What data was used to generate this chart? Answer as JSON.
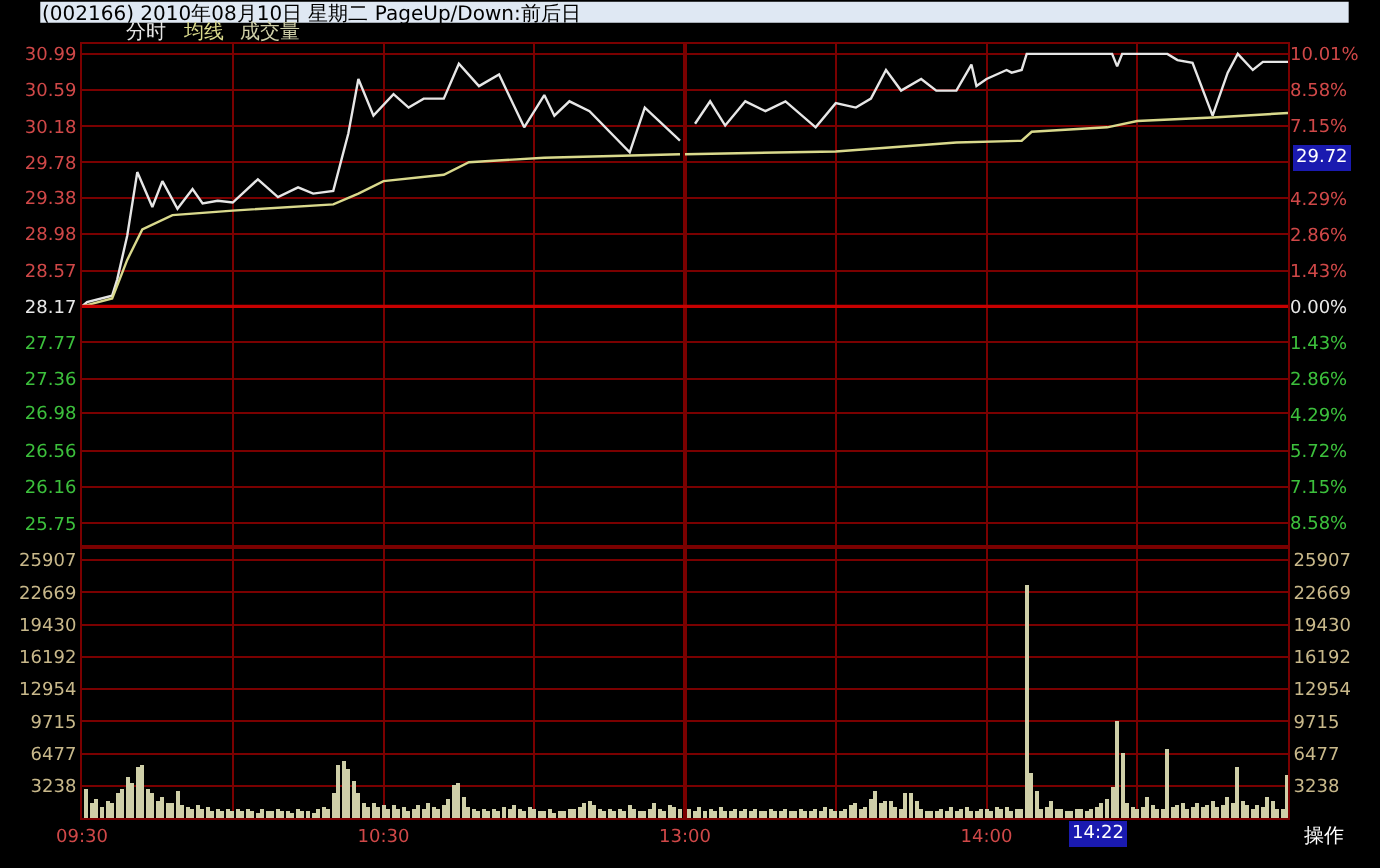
{
  "chart_data": [
    {
      "type": "line",
      "title": "(002166) 2010年08月10日 星期二 PageUp/Down:前后日",
      "grid": true,
      "tick_labels": "y",
      "xlim": [
        "2010-08-10T09:30",
        "2010-08-10T11:30"
      ],
      "xticks": [
        {
          "value": "2010-08-10T09:30",
          "label": null
        },
        {
          "value": "2010-08-10T10:00",
          "label": null
        },
        {
          "value": "2010-08-10T10:30",
          "label": null
        },
        {
          "value": "2010-08-10T11:00",
          "label": null
        }
      ],
      "ylim": [
        25.49,
        31.1
      ],
      "yticks": [
        30.99,
        30.59,
        30.18,
        29.78,
        29.38,
        28.98,
        28.57,
        28.17,
        27.77,
        27.36,
        26.98,
        26.56,
        26.16,
        25.75
      ],
      "ref_lines": [
        {
          "axis": "y",
          "value": 28.17,
          "color": "#c80000"
        }
      ],
      "series": [
        {
          "name": "分时",
          "color": "#e6e6e6",
          "x": [
            "2010-08-10T09:30",
            "2010-08-10T09:31",
            "2010-08-10T09:36",
            "2010-08-10T09:37",
            "2010-08-10T09:39",
            "2010-08-10T09:41",
            "2010-08-10T09:44",
            "2010-08-10T09:46",
            "2010-08-10T09:49",
            "2010-08-10T09:52",
            "2010-08-10T09:54",
            "2010-08-10T09:57",
            "2010-08-10T10:00",
            "2010-08-10T10:05",
            "2010-08-10T10:09",
            "2010-08-10T10:13",
            "2010-08-10T10:16",
            "2010-08-10T10:20",
            "2010-08-10T10:23",
            "2010-08-10T10:25",
            "2010-08-10T10:28",
            "2010-08-10T10:32",
            "2010-08-10T10:35",
            "2010-08-10T10:38",
            "2010-08-10T10:42",
            "2010-08-10T10:45",
            "2010-08-10T10:49",
            "2010-08-10T10:53",
            "2010-08-10T10:58",
            "2010-08-10T11:02",
            "2010-08-10T11:04",
            "2010-08-10T11:07",
            "2010-08-10T11:11",
            "2010-08-10T11:19",
            "2010-08-10T11:22",
            "2010-08-10T11:29"
          ],
          "values": [
            28.17,
            28.22,
            28.29,
            28.47,
            28.96,
            29.67,
            29.28,
            29.57,
            29.26,
            29.48,
            29.32,
            29.35,
            29.33,
            29.59,
            29.39,
            29.5,
            29.43,
            29.46,
            30.1,
            30.71,
            30.3,
            30.54,
            30.39,
            30.49,
            30.49,
            30.88,
            30.63,
            30.76,
            30.17,
            30.53,
            30.3,
            30.46,
            30.35,
            29.89,
            30.39,
            30.02
          ]
        },
        {
          "name": "均线",
          "color": "#d9d98c",
          "x": [
            "2010-08-10T09:30",
            "2010-08-10T09:36",
            "2010-08-10T09:39",
            "2010-08-10T09:42",
            "2010-08-10T09:48",
            "2010-08-10T10:00",
            "2010-08-10T10:20",
            "2010-08-10T10:25",
            "2010-08-10T10:30",
            "2010-08-10T10:42",
            "2010-08-10T10:47",
            "2010-08-10T11:02",
            "2010-08-10T11:29"
          ],
          "values": [
            28.17,
            28.26,
            28.69,
            29.03,
            29.19,
            29.24,
            29.31,
            29.43,
            29.57,
            29.64,
            29.78,
            29.83,
            29.87
          ]
        }
      ]
    },
    {
      "type": "line",
      "grid": true,
      "tick_labels": false,
      "xlim": [
        "2010-08-10T13:00",
        "2010-08-10T15:00"
      ],
      "xticks": [
        {
          "value": "2010-08-10T13:00",
          "label": null
        },
        {
          "value": "2010-08-10T13:30",
          "label": null
        },
        {
          "value": "2010-08-10T14:00",
          "label": null
        },
        {
          "value": "2010-08-10T14:30",
          "label": null
        }
      ],
      "ylim": [
        25.49,
        31.1
      ],
      "yticks": [
        30.99,
        30.59,
        30.18,
        29.78,
        29.38,
        28.98,
        28.57,
        28.17,
        27.77,
        27.36,
        26.98,
        26.56,
        26.16,
        25.75
      ],
      "y2lim": [
        -9.51,
        10.4
      ],
      "y2ticks": [
        {
          "value": 10.01,
          "label": "10.01%"
        },
        {
          "value": 8.58,
          "label": "8.58%"
        },
        {
          "value": 7.15,
          "label": "7.15%"
        },
        {
          "value": 4.29,
          "label": "4.29%"
        },
        {
          "value": 2.86,
          "label": "2.86%"
        },
        {
          "value": 1.43,
          "label": "1.43%"
        },
        {
          "value": 0,
          "label": "0.00%"
        },
        {
          "value": -1.43,
          "label": "1.43%"
        },
        {
          "value": -2.86,
          "label": "2.86%"
        },
        {
          "value": -4.29,
          "label": "4.29%"
        },
        {
          "value": -5.72,
          "label": "5.72%"
        },
        {
          "value": -7.15,
          "label": "7.15%"
        },
        {
          "value": -8.58,
          "label": "8.58%"
        }
      ],
      "ref_lines": [
        {
          "axis": "y",
          "value": 28.17,
          "color": "#c80000"
        }
      ],
      "annotations": [
        "29.72"
      ],
      "series": [
        {
          "color": "#e6e6e6",
          "x": [
            "2010-08-10T13:02",
            "2010-08-10T13:05",
            "2010-08-10T13:08",
            "2010-08-10T13:12",
            "2010-08-10T13:16",
            "2010-08-10T13:20",
            "2010-08-10T13:26",
            "2010-08-10T13:30",
            "2010-08-10T13:34",
            "2010-08-10T13:37",
            "2010-08-10T13:40",
            "2010-08-10T13:43",
            "2010-08-10T13:47",
            "2010-08-10T13:50",
            "2010-08-10T13:54",
            "2010-08-10T13:57",
            "2010-08-10T13:58",
            "2010-08-10T14:00",
            "2010-08-10T14:04",
            "2010-08-10T14:05",
            "2010-08-10T14:07",
            "2010-08-10T14:08",
            "2010-08-10T14:25",
            "2010-08-10T14:26",
            "2010-08-10T14:27",
            "2010-08-10T14:36",
            "2010-08-10T14:38",
            "2010-08-10T14:41",
            "2010-08-10T14:45",
            "2010-08-10T14:48",
            "2010-08-10T14:50",
            "2010-08-10T14:53",
            "2010-08-10T14:55",
            "2010-08-10T15:00"
          ],
          "values": [
            30.21,
            30.46,
            30.19,
            30.46,
            30.35,
            30.46,
            30.17,
            30.44,
            30.39,
            30.49,
            30.81,
            30.58,
            30.71,
            30.58,
            30.58,
            30.87,
            30.63,
            30.71,
            30.81,
            30.78,
            30.81,
            30.99,
            30.99,
            30.85,
            30.99,
            30.99,
            30.92,
            30.89,
            30.3,
            30.78,
            30.99,
            30.81,
            30.9,
            30.9
          ]
        },
        {
          "color": "#d9d98c",
          "x": [
            "2010-08-10T13:00",
            "2010-08-10T13:30",
            "2010-08-10T13:54",
            "2010-08-10T14:07",
            "2010-08-10T14:09",
            "2010-08-10T14:24",
            "2010-08-10T14:30",
            "2010-08-10T14:45",
            "2010-08-10T15:00"
          ],
          "values": [
            29.87,
            29.9,
            30.0,
            30.02,
            30.12,
            30.17,
            30.24,
            30.28,
            30.33
          ]
        }
      ]
    },
    {
      "type": "bar",
      "grid": true,
      "xlim": [
        "2010-08-10T09:30",
        "2010-08-10T11:30"
      ],
      "xticks": [
        {
          "value": "2010-08-10T09:30",
          "label": "09:30"
        },
        {
          "value": "2010-08-10T10:00",
          "label": null
        },
        {
          "value": "2010-08-10T10:30",
          "label": "10:30"
        },
        {
          "value": "2010-08-10T11:00",
          "label": null
        }
      ],
      "ylim": [
        0,
        27260
      ],
      "yticks": [
        3238,
        6477,
        9715,
        12954,
        16192,
        19430,
        22669,
        25907
      ],
      "series": [
        {
          "name": "成交量",
          "color": "#cfcfa8",
          "x": [
            "2010-08-10T09:31",
            "2010-08-10T09:32",
            "2010-08-10T09:33",
            "2010-08-10T09:34",
            "2010-08-10T09:35",
            "2010-08-10T09:36",
            "2010-08-10T09:37",
            "2010-08-10T09:38",
            "2010-08-10T09:39",
            "2010-08-10T09:40",
            "2010-08-10T09:41",
            "2010-08-10T09:42",
            "2010-08-10T09:43",
            "2010-08-10T09:44",
            "2010-08-10T09:45",
            "2010-08-10T09:46",
            "2010-08-10T09:47",
            "2010-08-10T09:48",
            "2010-08-10T09:49",
            "2010-08-10T09:50",
            "2010-08-10T09:51",
            "2010-08-10T09:52",
            "2010-08-10T09:53",
            "2010-08-10T09:54",
            "2010-08-10T09:55",
            "2010-08-10T09:56",
            "2010-08-10T09:57",
            "2010-08-10T09:58",
            "2010-08-10T09:59",
            "2010-08-10T10:00",
            "2010-08-10T10:01",
            "2010-08-10T10:02",
            "2010-08-10T10:03",
            "2010-08-10T10:04",
            "2010-08-10T10:05",
            "2010-08-10T10:06",
            "2010-08-10T10:07",
            "2010-08-10T10:08",
            "2010-08-10T10:09",
            "2010-08-10T10:10",
            "2010-08-10T10:11",
            "2010-08-10T10:12",
            "2010-08-10T10:13",
            "2010-08-10T10:14",
            "2010-08-10T10:15",
            "2010-08-10T10:16",
            "2010-08-10T10:17",
            "2010-08-10T10:18",
            "2010-08-10T10:19",
            "2010-08-10T10:20",
            "2010-08-10T10:21",
            "2010-08-10T10:22",
            "2010-08-10T10:23",
            "2010-08-10T10:24",
            "2010-08-10T10:25",
            "2010-08-10T10:26",
            "2010-08-10T10:27",
            "2010-08-10T10:28",
            "2010-08-10T10:29",
            "2010-08-10T10:30",
            "2010-08-10T10:31",
            "2010-08-10T10:32",
            "2010-08-10T10:33",
            "2010-08-10T10:34",
            "2010-08-10T10:35",
            "2010-08-10T10:36",
            "2010-08-10T10:37",
            "2010-08-10T10:38",
            "2010-08-10T10:39",
            "2010-08-10T10:40",
            "2010-08-10T10:41",
            "2010-08-10T10:42",
            "2010-08-10T10:43",
            "2010-08-10T10:44",
            "2010-08-10T10:45",
            "2010-08-10T10:46",
            "2010-08-10T10:47",
            "2010-08-10T10:48",
            "2010-08-10T10:49",
            "2010-08-10T10:50",
            "2010-08-10T10:51",
            "2010-08-10T10:52",
            "2010-08-10T10:53",
            "2010-08-10T10:54",
            "2010-08-10T10:55",
            "2010-08-10T10:56",
            "2010-08-10T10:57",
            "2010-08-10T10:58",
            "2010-08-10T10:59",
            "2010-08-10T11:00",
            "2010-08-10T11:01",
            "2010-08-10T11:02",
            "2010-08-10T11:03",
            "2010-08-10T11:04",
            "2010-08-10T11:05",
            "2010-08-10T11:06",
            "2010-08-10T11:07",
            "2010-08-10T11:08",
            "2010-08-10T11:09",
            "2010-08-10T11:10",
            "2010-08-10T11:11",
            "2010-08-10T11:12",
            "2010-08-10T11:13",
            "2010-08-10T11:14",
            "2010-08-10T11:15",
            "2010-08-10T11:16",
            "2010-08-10T11:17",
            "2010-08-10T11:18",
            "2010-08-10T11:19",
            "2010-08-10T11:20",
            "2010-08-10T11:21",
            "2010-08-10T11:22",
            "2010-08-10T11:23",
            "2010-08-10T11:24",
            "2010-08-10T11:25",
            "2010-08-10T11:26",
            "2010-08-10T11:27",
            "2010-08-10T11:28",
            "2010-08-10T11:29"
          ],
          "values": [
            3000,
            1500,
            2000,
            1200,
            1800,
            1500,
            2500,
            3000,
            4200,
            3500,
            5200,
            5400,
            3000,
            2500,
            1800,
            2200,
            1500,
            1600,
            2800,
            1400,
            1200,
            1000,
            1300,
            900,
            1100,
            800,
            1000,
            700,
            900,
            800,
            900,
            700,
            1000,
            800,
            600,
            900,
            700,
            800,
            1000,
            700,
            800,
            600,
            900,
            700,
            800,
            600,
            900,
            1200,
            1000,
            2500,
            5300,
            5800,
            5000,
            3800,
            2600,
            1500,
            1100,
            1600,
            1200,
            1400,
            1000,
            1300,
            900,
            1100,
            800,
            1000,
            1300,
            900,
            1500,
            1100,
            1000,
            1400,
            2000,
            3300,
            3500,
            2200,
            1200,
            900,
            800,
            1000,
            700,
            900,
            800,
            1100,
            900,
            1300,
            1000,
            800,
            1200,
            900,
            800,
            700,
            900,
            600,
            800,
            700,
            900,
            1000,
            1200,
            1500,
            1700,
            1300,
            1000,
            800,
            900,
            700,
            1000,
            800,
            1300,
            900,
            800,
            700,
            1000,
            1600,
            900,
            800,
            1300,
            1100,
            900
          ]
        }
      ]
    },
    {
      "type": "bar",
      "grid": true,
      "xlim": [
        "2010-08-10T13:00",
        "2010-08-10T15:00"
      ],
      "xticks": [
        {
          "value": "2010-08-10T13:00",
          "label": "13:00"
        },
        {
          "value": "2010-08-10T13:30",
          "label": null
        },
        {
          "value": "2010-08-10T14:00",
          "label": "14:00"
        },
        {
          "value": "2010-08-10T14:30",
          "label": null
        }
      ],
      "ylim": [
        0,
        27260
      ],
      "yticks": [
        3238,
        6477,
        9715,
        12954,
        16192,
        19430,
        22669,
        25907
      ],
      "annotations": [
        "14:22",
        "操作"
      ],
      "series": [
        {
          "color": "#cfcfa8",
          "x": [
            "2010-08-10T13:01",
            "2010-08-10T13:02",
            "2010-08-10T13:03",
            "2010-08-10T13:04",
            "2010-08-10T13:05",
            "2010-08-10T13:06",
            "2010-08-10T13:07",
            "2010-08-10T13:08",
            "2010-08-10T13:09",
            "2010-08-10T13:10",
            "2010-08-10T13:11",
            "2010-08-10T13:12",
            "2010-08-10T13:13",
            "2010-08-10T13:14",
            "2010-08-10T13:15",
            "2010-08-10T13:16",
            "2010-08-10T13:17",
            "2010-08-10T13:18",
            "2010-08-10T13:19",
            "2010-08-10T13:20",
            "2010-08-10T13:21",
            "2010-08-10T13:22",
            "2010-08-10T13:23",
            "2010-08-10T13:24",
            "2010-08-10T13:25",
            "2010-08-10T13:26",
            "2010-08-10T13:27",
            "2010-08-10T13:28",
            "2010-08-10T13:29",
            "2010-08-10T13:30",
            "2010-08-10T13:31",
            "2010-08-10T13:32",
            "2010-08-10T13:33",
            "2010-08-10T13:34",
            "2010-08-10T13:35",
            "2010-08-10T13:36",
            "2010-08-10T13:37",
            "2010-08-10T13:38",
            "2010-08-10T13:39",
            "2010-08-10T13:40",
            "2010-08-10T13:41",
            "2010-08-10T13:42",
            "2010-08-10T13:43",
            "2010-08-10T13:44",
            "2010-08-10T13:45",
            "2010-08-10T13:46",
            "2010-08-10T13:47",
            "2010-08-10T13:48",
            "2010-08-10T13:49",
            "2010-08-10T13:50",
            "2010-08-10T13:51",
            "2010-08-10T13:52",
            "2010-08-10T13:53",
            "2010-08-10T13:54",
            "2010-08-10T13:55",
            "2010-08-10T13:56",
            "2010-08-10T13:57",
            "2010-08-10T13:58",
            "2010-08-10T13:59",
            "2010-08-10T14:00",
            "2010-08-10T14:01",
            "2010-08-10T14:02",
            "2010-08-10T14:03",
            "2010-08-10T14:04",
            "2010-08-10T14:05",
            "2010-08-10T14:06",
            "2010-08-10T14:07",
            "2010-08-10T14:08",
            "2010-08-10T14:09",
            "2010-08-10T14:10",
            "2010-08-10T14:11",
            "2010-08-10T14:12",
            "2010-08-10T14:13",
            "2010-08-10T14:14",
            "2010-08-10T14:15",
            "2010-08-10T14:16",
            "2010-08-10T14:17",
            "2010-08-10T14:18",
            "2010-08-10T14:19",
            "2010-08-10T14:20",
            "2010-08-10T14:21",
            "2010-08-10T14:22",
            "2010-08-10T14:23",
            "2010-08-10T14:24",
            "2010-08-10T14:25",
            "2010-08-10T14:26",
            "2010-08-10T14:27",
            "2010-08-10T14:28",
            "2010-08-10T14:29",
            "2010-08-10T14:30",
            "2010-08-10T14:31",
            "2010-08-10T14:32",
            "2010-08-10T14:33",
            "2010-08-10T14:34",
            "2010-08-10T14:35",
            "2010-08-10T14:36",
            "2010-08-10T14:37",
            "2010-08-10T14:38",
            "2010-08-10T14:39",
            "2010-08-10T14:40",
            "2010-08-10T14:41",
            "2010-08-10T14:42",
            "2010-08-10T14:43",
            "2010-08-10T14:44",
            "2010-08-10T14:45",
            "2010-08-10T14:46",
            "2010-08-10T14:47",
            "2010-08-10T14:48",
            "2010-08-10T14:49",
            "2010-08-10T14:50",
            "2010-08-10T14:51",
            "2010-08-10T14:52",
            "2010-08-10T14:53",
            "2010-08-10T14:54",
            "2010-08-10T14:55",
            "2010-08-10T14:56",
            "2010-08-10T14:57",
            "2010-08-10T14:58",
            "2010-08-10T14:59",
            "2010-08-10T15:00"
          ],
          "values": [
            900,
            800,
            1100,
            700,
            900,
            800,
            1200,
            700,
            800,
            900,
            700,
            1000,
            800,
            900,
            700,
            800,
            1000,
            800,
            700,
            900,
            800,
            700,
            900,
            700,
            800,
            900,
            800,
            1100,
            900,
            800,
            700,
            900,
            1300,
            1600,
            900,
            1200,
            2000,
            2700,
            1500,
            1700,
            1800,
            1100,
            900,
            2500,
            2600,
            1800,
            900,
            800,
            700,
            800,
            900,
            700,
            1200,
            800,
            900,
            1100,
            700,
            800,
            900,
            1000,
            800,
            1200,
            900,
            1100,
            800,
            1000,
            900,
            23400,
            4600,
            2700,
            1000,
            1200,
            1800,
            1000,
            900,
            800,
            700,
            1000,
            900,
            800,
            900,
            1200,
            1500,
            2000,
            3200,
            9800,
            6500,
            1500,
            1200,
            1000,
            1200,
            2100,
            1300,
            900,
            1000,
            6900,
            1100,
            1300,
            1500,
            1000,
            1200,
            1600,
            1100,
            1400,
            1800,
            1200,
            1400,
            2200,
            1500,
            5200,
            1700,
            1400,
            1000,
            1300,
            1200,
            2100,
            1800,
            1000,
            900,
            4300
          ]
        }
      ]
    }
  ]
}
